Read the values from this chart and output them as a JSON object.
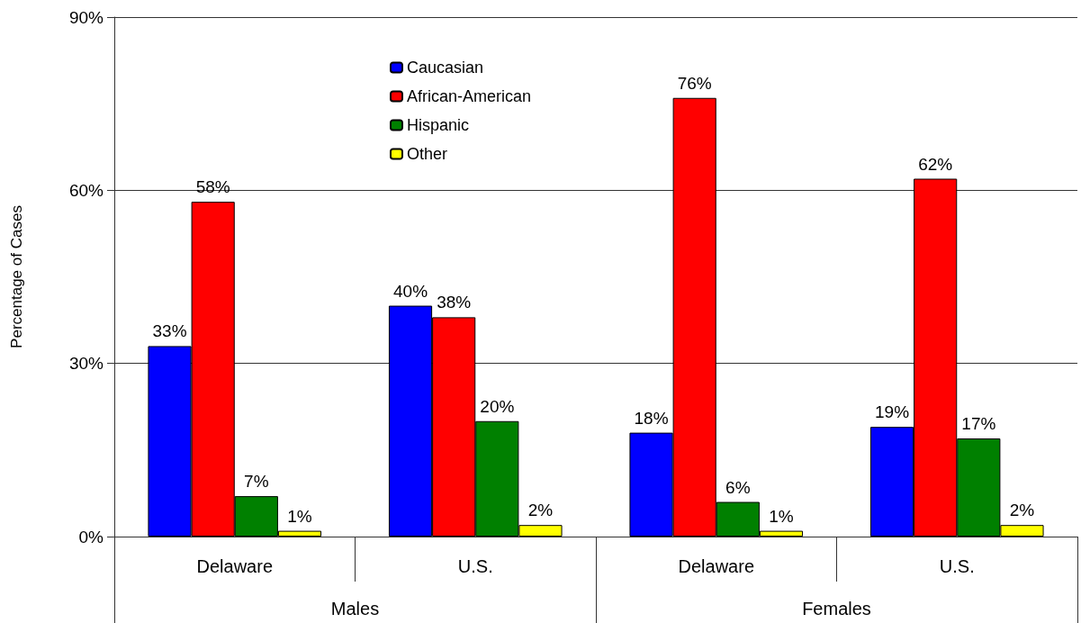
{
  "chart_data": {
    "type": "bar",
    "ylabel": "Percentage of Cases",
    "categories": [
      "Delaware",
      "U.S.",
      "Delaware",
      "U.S."
    ],
    "annotations": [
      "Males",
      "Females"
    ],
    "series": [
      {
        "name": "Caucasian",
        "color": "#0000ff",
        "values": [
          33,
          40,
          18,
          19
        ],
        "value_labels": [
          "33%",
          "40%",
          "18%",
          "19%"
        ]
      },
      {
        "name": "African-American",
        "color": "#ff0000",
        "values": [
          58,
          38,
          76,
          62
        ],
        "value_labels": [
          "58%",
          "38%",
          "76%",
          "62%"
        ]
      },
      {
        "name": "Hispanic",
        "color": "#008000",
        "values": [
          7,
          20,
          6,
          17
        ],
        "value_labels": [
          "7%",
          "20%",
          "6%",
          "17%"
        ]
      },
      {
        "name": "Other",
        "color": "#ffff00",
        "values": [
          1,
          2,
          1,
          2
        ],
        "value_labels": [
          "1%",
          "2%",
          "1%",
          "2%"
        ]
      }
    ],
    "ylim": [
      0,
      90
    ],
    "yticks": [
      {
        "value": 0,
        "label": "0%"
      },
      {
        "value": 30,
        "label": "30%"
      },
      {
        "value": 60,
        "label": "60%"
      },
      {
        "value": 90,
        "label": "90%"
      }
    ],
    "grid": "y",
    "legend": "top"
  }
}
